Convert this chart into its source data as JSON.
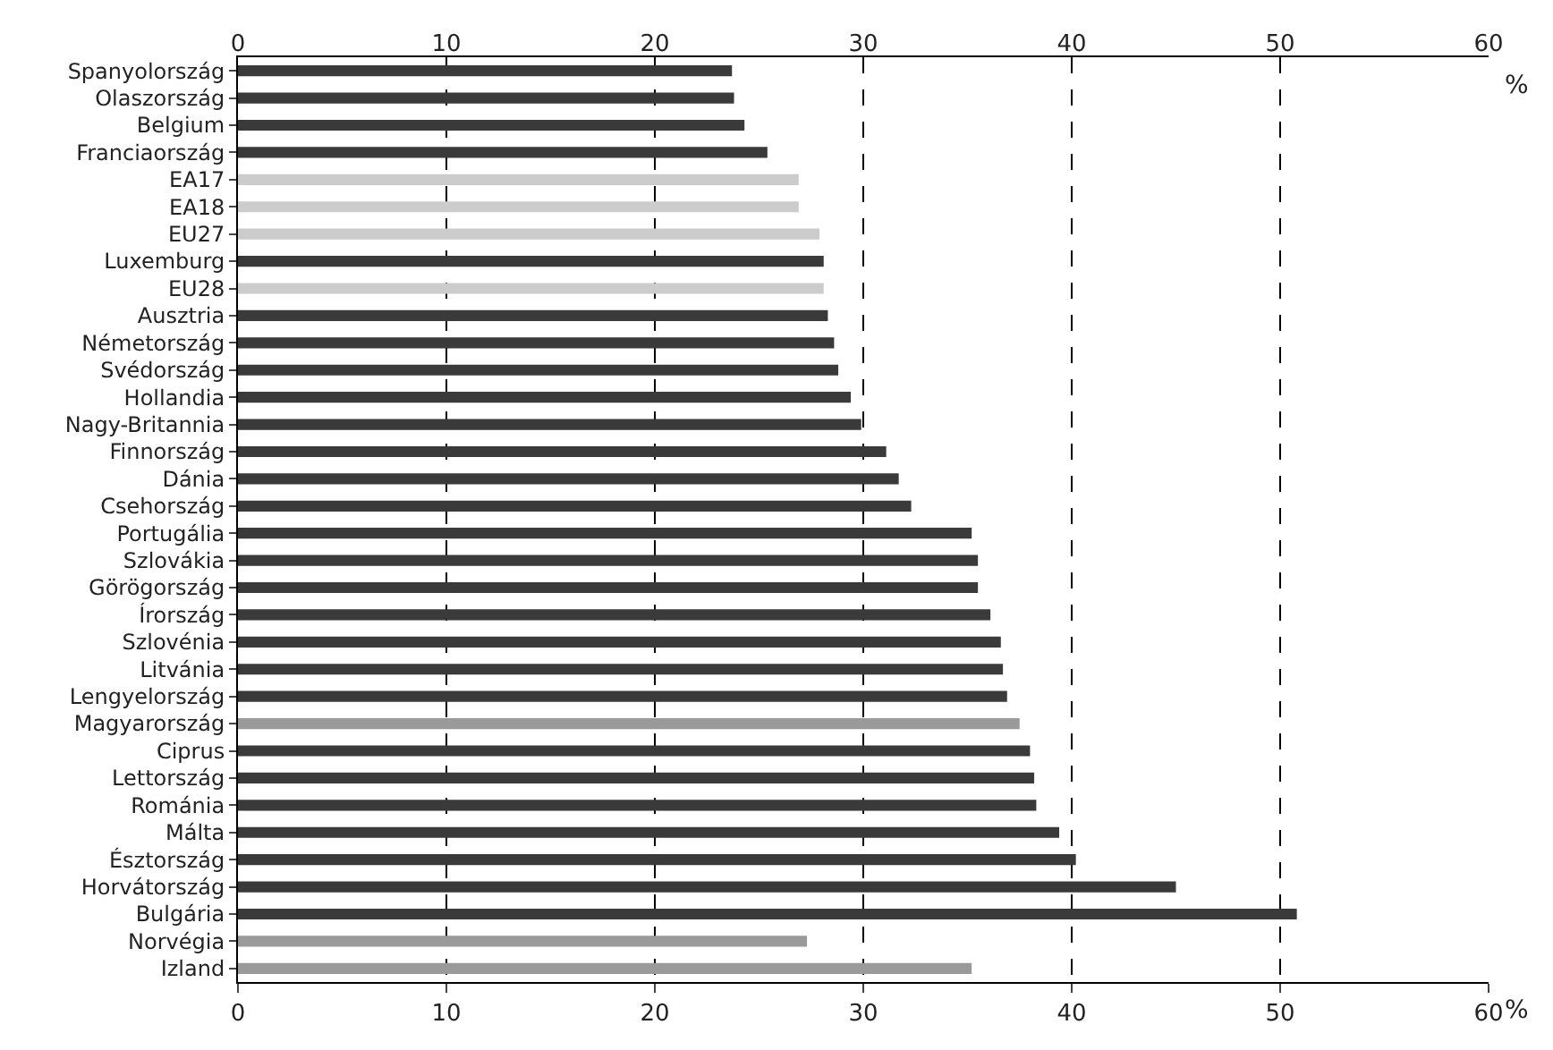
{
  "chart_data": {
    "type": "bar",
    "orientation": "horizontal",
    "categories": [
      "Spanyolország",
      "Olaszország",
      "Belgium",
      "Franciaország",
      "EA17",
      "EA18",
      "EU27",
      "Luxemburg",
      "EU28",
      "Ausztria",
      "Németország",
      "Svédország",
      "Hollandia",
      "Nagy-Britannia",
      "Finnország",
      "Dánia",
      "Csehország",
      "Portugália",
      "Szlovákia",
      "Görögország",
      "Írország",
      "Szlovénia",
      "Litvánia",
      "Lengyelország",
      "Magyarország",
      "Ciprus",
      "Lettország",
      "Románia",
      "Málta",
      "Észtország",
      "Horvátország",
      "Bulgária",
      "Norvégia",
      "Izland"
    ],
    "values": [
      23.7,
      23.8,
      24.3,
      25.4,
      26.9,
      26.9,
      27.9,
      28.1,
      28.1,
      28.3,
      28.6,
      28.8,
      29.4,
      29.9,
      31.1,
      31.7,
      32.3,
      35.2,
      35.5,
      35.5,
      36.1,
      36.6,
      36.7,
      36.9,
      37.5,
      38.0,
      38.2,
      38.3,
      39.4,
      40.2,
      45.0,
      50.8,
      27.3,
      35.2
    ],
    "colors": [
      "#3a3a3a",
      "#3a3a3a",
      "#3a3a3a",
      "#3a3a3a",
      "#cccccc",
      "#cccccc",
      "#cccccc",
      "#3a3a3a",
      "#cccccc",
      "#3a3a3a",
      "#3a3a3a",
      "#3a3a3a",
      "#3a3a3a",
      "#3a3a3a",
      "#3a3a3a",
      "#3a3a3a",
      "#3a3a3a",
      "#3a3a3a",
      "#3a3a3a",
      "#3a3a3a",
      "#3a3a3a",
      "#3a3a3a",
      "#3a3a3a",
      "#3a3a3a",
      "#9a9a9a",
      "#3a3a3a",
      "#3a3a3a",
      "#3a3a3a",
      "#3a3a3a",
      "#3a3a3a",
      "#3a3a3a",
      "#3a3a3a",
      "#9a9a9a",
      "#9a9a9a"
    ],
    "xlim": [
      0,
      60
    ],
    "xticks": [
      0,
      10,
      20,
      30,
      40,
      50,
      60
    ],
    "x2lim": [
      0,
      60
    ],
    "x2ticks": [
      0,
      10,
      20,
      30,
      40,
      50,
      60
    ],
    "grid": "x",
    "annotations": [
      "%",
      "%"
    ]
  }
}
